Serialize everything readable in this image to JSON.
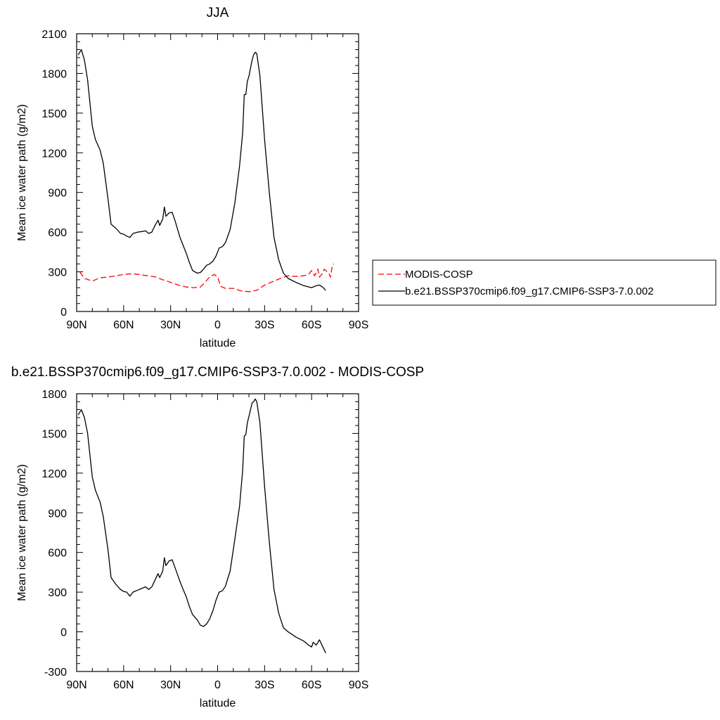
{
  "chart_data": [
    {
      "type": "line",
      "title": "JJA",
      "xlabel": "latitude",
      "ylabel": "Mean ice water path (g/m2)",
      "x_ticks": [
        {
          "value": 90,
          "label": "90N"
        },
        {
          "value": 60,
          "label": "60N"
        },
        {
          "value": 30,
          "label": "30N"
        },
        {
          "value": 0,
          "label": "0"
        },
        {
          "value": -30,
          "label": "30S"
        },
        {
          "value": -60,
          "label": "60S"
        },
        {
          "value": -90,
          "label": "90S"
        }
      ],
      "xlim": [
        90,
        -90
      ],
      "ylim": [
        0,
        2100
      ],
      "y_ticks": [
        0,
        300,
        600,
        900,
        1200,
        1500,
        1800,
        2100
      ],
      "grid": false,
      "legend_placement": "right",
      "series": [
        {
          "name": "MODIS-COSP",
          "color": "#ff0000",
          "style": "dashed",
          "points": [
            [
              88,
              300
            ],
            [
              85,
              250
            ],
            [
              80,
              230
            ],
            [
              75,
              255
            ],
            [
              70,
              260
            ],
            [
              65,
              270
            ],
            [
              60,
              280
            ],
            [
              55,
              285
            ],
            [
              50,
              280
            ],
            [
              45,
              270
            ],
            [
              40,
              262
            ],
            [
              35,
              240
            ],
            [
              30,
              220
            ],
            [
              25,
              200
            ],
            [
              20,
              185
            ],
            [
              15,
              180
            ],
            [
              11,
              185
            ],
            [
              8,
              220
            ],
            [
              5,
              265
            ],
            [
              2,
              280
            ],
            [
              0,
              260
            ],
            [
              -2,
              190
            ],
            [
              -5,
              175
            ],
            [
              -10,
              175
            ],
            [
              -15,
              155
            ],
            [
              -20,
              150
            ],
            [
              -25,
              160
            ],
            [
              -30,
              200
            ],
            [
              -35,
              225
            ],
            [
              -40,
              250
            ],
            [
              -45,
              270
            ],
            [
              -50,
              265
            ],
            [
              -55,
              270
            ],
            [
              -58,
              280
            ],
            [
              -60,
              310
            ],
            [
              -62,
              270
            ],
            [
              -64,
              320
            ],
            [
              -65,
              260
            ],
            [
              -67,
              290
            ],
            [
              -68,
              320
            ],
            [
              -70,
              300
            ],
            [
              -71,
              290
            ],
            [
              -72,
              260
            ],
            [
              -73,
              330
            ],
            [
              -74,
              360
            ]
          ]
        },
        {
          "name": "b.e21.BSSP370cmip6.f09_g17.CMIP6-SSP3-7.0.002",
          "color": "#000000",
          "style": "solid",
          "points": [
            [
              89,
              1940
            ],
            [
              87,
              1980
            ],
            [
              85,
              1900
            ],
            [
              83,
              1750
            ],
            [
              80,
              1400
            ],
            [
              78,
              1300
            ],
            [
              75,
              1220
            ],
            [
              73,
              1120
            ],
            [
              70,
              850
            ],
            [
              68,
              660
            ],
            [
              65,
              630
            ],
            [
              62,
              590
            ],
            [
              60,
              585
            ],
            [
              58,
              570
            ],
            [
              56,
              560
            ],
            [
              54,
              590
            ],
            [
              51,
              600
            ],
            [
              48,
              605
            ],
            [
              46,
              610
            ],
            [
              44,
              590
            ],
            [
              42,
              600
            ],
            [
              40,
              650
            ],
            [
              38,
              690
            ],
            [
              37,
              650
            ],
            [
              35,
              700
            ],
            [
              34,
              790
            ],
            [
              33,
              720
            ],
            [
              31,
              745
            ],
            [
              29,
              750
            ],
            [
              27,
              680
            ],
            [
              24,
              560
            ],
            [
              22,
              500
            ],
            [
              20,
              440
            ],
            [
              18,
              370
            ],
            [
              16,
              310
            ],
            [
              13,
              290
            ],
            [
              11,
              295
            ],
            [
              9,
              320
            ],
            [
              7,
              350
            ],
            [
              5,
              360
            ],
            [
              3,
              380
            ],
            [
              1,
              420
            ],
            [
              -1,
              480
            ],
            [
              -3,
              490
            ],
            [
              -5,
              520
            ],
            [
              -8,
              620
            ],
            [
              -11,
              820
            ],
            [
              -14,
              1100
            ],
            [
              -16,
              1350
            ],
            [
              -17,
              1640
            ],
            [
              -18,
              1640
            ],
            [
              -19,
              1740
            ],
            [
              -20,
              1780
            ],
            [
              -22,
              1900
            ],
            [
              -23,
              1940
            ],
            [
              -24,
              1960
            ],
            [
              -25,
              1950
            ],
            [
              -27,
              1780
            ],
            [
              -30,
              1300
            ],
            [
              -33,
              900
            ],
            [
              -36,
              560
            ],
            [
              -39,
              390
            ],
            [
              -42,
              290
            ],
            [
              -45,
              250
            ],
            [
              -50,
              220
            ],
            [
              -55,
              195
            ],
            [
              -60,
              180
            ],
            [
              -63,
              195
            ],
            [
              -65,
              200
            ],
            [
              -67,
              185
            ],
            [
              -69,
              160
            ]
          ]
        }
      ]
    },
    {
      "type": "line",
      "title": "b.e21.BSSP370cmip6.f09_g17.CMIP6-SSP3-7.0.002 - MODIS-COSP",
      "xlabel": "latitude",
      "ylabel": "Mean ice water path (g/m2)",
      "x_ticks": [
        {
          "value": 90,
          "label": "90N"
        },
        {
          "value": 60,
          "label": "60N"
        },
        {
          "value": 30,
          "label": "30N"
        },
        {
          "value": 0,
          "label": "0"
        },
        {
          "value": -30,
          "label": "30S"
        },
        {
          "value": -60,
          "label": "60S"
        },
        {
          "value": -90,
          "label": "90S"
        }
      ],
      "xlim": [
        90,
        -90
      ],
      "ylim": [
        -300,
        1800
      ],
      "y_ticks": [
        -300,
        0,
        300,
        600,
        900,
        1200,
        1500,
        1800
      ],
      "grid": false,
      "series": [
        {
          "color": "#000000",
          "style": "solid",
          "points": [
            [
              89,
              1640
            ],
            [
              87,
              1680
            ],
            [
              85,
              1620
            ],
            [
              83,
              1500
            ],
            [
              80,
              1170
            ],
            [
              78,
              1070
            ],
            [
              75,
              980
            ],
            [
              73,
              870
            ],
            [
              70,
              620
            ],
            [
              68,
              410
            ],
            [
              65,
              360
            ],
            [
              62,
              320
            ],
            [
              60,
              305
            ],
            [
              58,
              300
            ],
            [
              56,
              270
            ],
            [
              54,
              300
            ],
            [
              51,
              315
            ],
            [
              48,
              330
            ],
            [
              46,
              340
            ],
            [
              44,
              320
            ],
            [
              42,
              340
            ],
            [
              40,
              390
            ],
            [
              38,
              440
            ],
            [
              37,
              410
            ],
            [
              35,
              460
            ],
            [
              34,
              560
            ],
            [
              33,
              500
            ],
            [
              31,
              535
            ],
            [
              29,
              545
            ],
            [
              27,
              480
            ],
            [
              24,
              380
            ],
            [
              22,
              320
            ],
            [
              20,
              265
            ],
            [
              18,
              190
            ],
            [
              16,
              130
            ],
            [
              13,
              90
            ],
            [
              11,
              50
            ],
            [
              9,
              40
            ],
            [
              7,
              60
            ],
            [
              5,
              100
            ],
            [
              3,
              160
            ],
            [
              1,
              240
            ],
            [
              -1,
              300
            ],
            [
              -3,
              310
            ],
            [
              -5,
              345
            ],
            [
              -8,
              460
            ],
            [
              -11,
              700
            ],
            [
              -14,
              950
            ],
            [
              -16,
              1220
            ],
            [
              -17,
              1480
            ],
            [
              -18,
              1490
            ],
            [
              -19,
              1580
            ],
            [
              -20,
              1630
            ],
            [
              -22,
              1730
            ],
            [
              -23,
              1740
            ],
            [
              -24,
              1760
            ],
            [
              -25,
              1740
            ],
            [
              -27,
              1580
            ],
            [
              -30,
              1100
            ],
            [
              -33,
              680
            ],
            [
              -36,
              320
            ],
            [
              -39,
              140
            ],
            [
              -42,
              30
            ],
            [
              -45,
              0
            ],
            [
              -50,
              -40
            ],
            [
              -55,
              -70
            ],
            [
              -58,
              -100
            ],
            [
              -60,
              -115
            ],
            [
              -61,
              -80
            ],
            [
              -63,
              -100
            ],
            [
              -65,
              -60
            ],
            [
              -67,
              -110
            ],
            [
              -69,
              -160
            ]
          ]
        }
      ]
    }
  ]
}
